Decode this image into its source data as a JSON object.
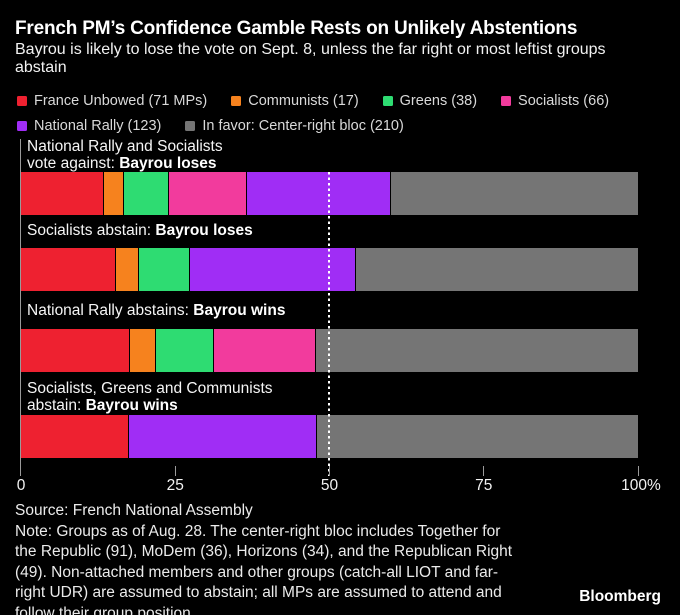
{
  "header": {
    "title": "French PM’s Confidence Gamble Rests on Unlikely Abstentions",
    "subtitle": "Bayrou is likely to lose the vote on Sept. 8, unless the far right or most leftist groups abstain"
  },
  "legend": {
    "rows": [
      [
        {
          "label": "France Unbowed (71 MPs)",
          "group": "France Unbowed"
        },
        {
          "label": "Communists (17)",
          "group": "Communists"
        },
        {
          "label": "Greens (38)",
          "group": "Greens"
        },
        {
          "label": "Socialists (66)",
          "group": "Socialists"
        }
      ],
      [
        {
          "label": "National Rally (123)",
          "group": "National Rally"
        },
        {
          "label": "In favor: Center-right bloc (210)",
          "group": "Center-right bloc"
        }
      ]
    ]
  },
  "chart_data": {
    "type": "bar",
    "subtype": "stacked-100pct-horizontal",
    "xlabel": "",
    "ylabel": "",
    "x_axis": {
      "ticks": [
        0,
        25,
        50,
        75,
        100
      ],
      "tick_labels": [
        "0",
        "25",
        "50",
        "75",
        "100%"
      ],
      "range": [
        0,
        100
      ]
    },
    "reference_line_pct": 50,
    "reference_line_style": "white-dotted",
    "groups": [
      {
        "name": "France Unbowed",
        "mps": 71,
        "color": "#ee2130"
      },
      {
        "name": "Communists",
        "mps": 17,
        "color": "#f6821e"
      },
      {
        "name": "Greens",
        "mps": 38,
        "color": "#2edc72"
      },
      {
        "name": "Socialists",
        "mps": 66,
        "color": "#f23b9d"
      },
      {
        "name": "National Rally",
        "mps": 123,
        "color": "#a02df5"
      },
      {
        "name": "Center-right bloc",
        "mps": 210,
        "color": "#757575"
      }
    ],
    "scenarios": [
      {
        "label_lines": [
          {
            "plain": "National Rally and Socialists",
            "bold": ""
          },
          {
            "plain": "vote against: ",
            "bold": "Bayrou loses"
          }
        ],
        "outcome": "Bayrou loses",
        "segments": [
          {
            "group": "France Unbowed",
            "pct": 13.52
          },
          {
            "group": "Communists",
            "pct": 3.24
          },
          {
            "group": "Greens",
            "pct": 7.24
          },
          {
            "group": "Socialists",
            "pct": 12.57
          },
          {
            "group": "National Rally",
            "pct": 23.43
          },
          {
            "group": "Center-right bloc",
            "pct": 40.0
          }
        ]
      },
      {
        "label_lines": [
          {
            "plain": "Socialists abstain: ",
            "bold": "Bayrou loses"
          }
        ],
        "outcome": "Bayrou loses",
        "segments": [
          {
            "group": "France Unbowed",
            "pct": 15.47
          },
          {
            "group": "Communists",
            "pct": 3.7
          },
          {
            "group": "Greens",
            "pct": 8.28
          },
          {
            "group": "National Rally",
            "pct": 26.8
          },
          {
            "group": "Center-right bloc",
            "pct": 45.75
          }
        ]
      },
      {
        "label_lines": [
          {
            "plain": "National Rally abstains: ",
            "bold": "Bayrou wins"
          }
        ],
        "outcome": "Bayrou wins",
        "segments": [
          {
            "group": "France Unbowed",
            "pct": 17.66
          },
          {
            "group": "Communists",
            "pct": 4.23
          },
          {
            "group": "Greens",
            "pct": 9.45
          },
          {
            "group": "Socialists",
            "pct": 16.42
          },
          {
            "group": "Center-right bloc",
            "pct": 52.24
          }
        ]
      },
      {
        "label_lines": [
          {
            "plain": "Socialists, Greens and Communists",
            "bold": ""
          },
          {
            "plain": "abstain: ",
            "bold": "Bayrou wins"
          }
        ],
        "outcome": "Bayrou wins",
        "segments": [
          {
            "group": "France Unbowed",
            "pct": 17.57
          },
          {
            "group": "National Rally",
            "pct": 30.45
          },
          {
            "group": "Center-right bloc",
            "pct": 51.98
          }
        ]
      }
    ]
  },
  "footer": {
    "lines": [
      "Source: French National Assembly",
      "Note: Groups as of Aug. 28. The center-right bloc includes Together for",
      "the Republic (91), MoDem (36), Horizons (34), and the Republican Right",
      "(49). Non-attached members and other groups (catch-all LIOT and far-",
      "right UDR) are assumed to abstain; all MPs are assumed to attend and",
      "follow their group position."
    ],
    "brand": "Bloomberg"
  }
}
